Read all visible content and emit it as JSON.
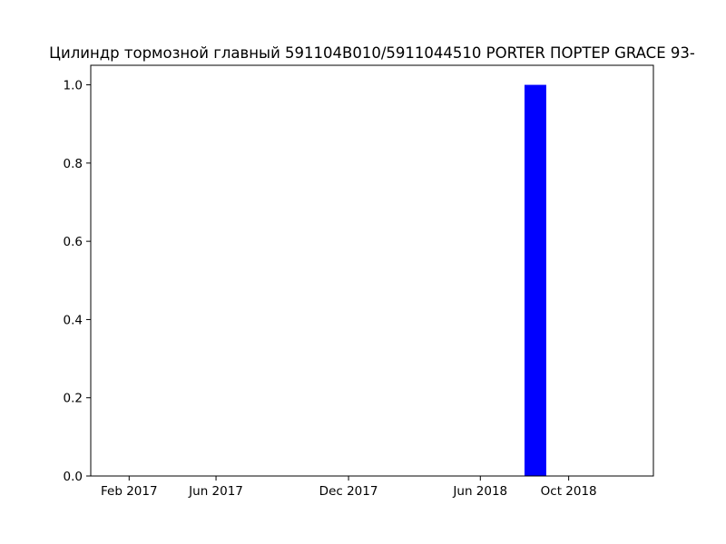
{
  "chart_data": {
    "type": "bar",
    "title": "Цилиндр тормозной главный  591104B010/5911044510 PORTER ПОРТЕР GRACE 93-",
    "xlabel": "",
    "ylabel": "",
    "x_axis": {
      "kind": "date",
      "range": [
        "2016-12-10",
        "2019-01-26"
      ],
      "ticks": [
        {
          "date": "2017-02-01",
          "label": "Feb 2017"
        },
        {
          "date": "2017-06-01",
          "label": "Jun 2017"
        },
        {
          "date": "2017-12-01",
          "label": "Dec 2017"
        },
        {
          "date": "2018-06-01",
          "label": "Jun 2018"
        },
        {
          "date": "2018-10-01",
          "label": "Oct 2018"
        }
      ]
    },
    "y_axis": {
      "range": [
        0,
        1.05
      ],
      "ticks": [
        {
          "value": 0.0,
          "label": "0.0"
        },
        {
          "value": 0.2,
          "label": "0.2"
        },
        {
          "value": 0.4,
          "label": "0.4"
        },
        {
          "value": 0.6,
          "label": "0.6"
        },
        {
          "value": 0.8,
          "label": "0.8"
        },
        {
          "value": 1.0,
          "label": "1.0"
        }
      ]
    },
    "series": [
      {
        "points": [
          {
            "x_start": "2018-08-01",
            "x_end": "2018-08-31",
            "value": 1.0
          }
        ],
        "color": "#0000ff"
      }
    ],
    "grid": false,
    "legend": "none"
  }
}
